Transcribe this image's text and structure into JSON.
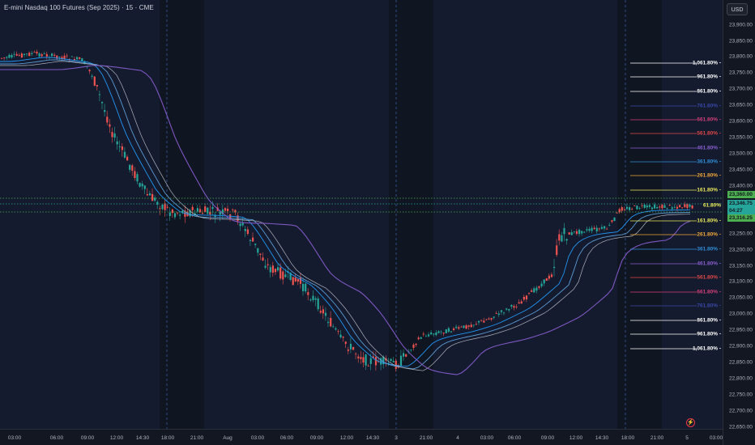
{
  "header": {
    "title": "E-mini Nasdaq 100 Futures (Sep 2025) · 15 · CME"
  },
  "currency": "USD",
  "price_ticks": [
    "23,900.00",
    "23,850.00",
    "23,800.00",
    "23,750.00",
    "23,700.00",
    "23,650.00",
    "23,600.00",
    "23,550.00",
    "23,500.00",
    "23,450.00",
    "23,400.00",
    "23,350.00",
    "23,250.00",
    "23,200.00",
    "23,150.00",
    "23,100.00",
    "23,050.00",
    "23,000.00",
    "22,950.00",
    "22,900.00",
    "22,850.00",
    "22,800.00",
    "22,750.00",
    "22,700.00",
    "22,650.00"
  ],
  "time_ticks": [
    "03:00",
    "06:00",
    "09:00",
    "12:00",
    "14:30",
    "18:00",
    "21:00",
    "Aug",
    "03:00",
    "06:00",
    "09:00",
    "12:00",
    "14:30",
    "3",
    "21:00",
    "4",
    "03:00",
    "06:00",
    "09:00",
    "12:00",
    "14:30",
    "18:00",
    "21:00",
    "5",
    "03:00"
  ],
  "upper_fibs": [
    {
      "label": "1,061.80%",
      "color": "#ffffff"
    },
    {
      "label": "961.80%",
      "color": "#ffffff"
    },
    {
      "label": "861.80%",
      "color": "#ffffff"
    },
    {
      "label": "761.80%",
      "color": "#3a47a8"
    },
    {
      "label": "661.80%",
      "color": "#d43f7a"
    },
    {
      "label": "561.80%",
      "color": "#e04848"
    },
    {
      "label": "461.80%",
      "color": "#8a5fd0"
    },
    {
      "label": "361.80%",
      "color": "#2f8ed8"
    },
    {
      "label": "261.80%",
      "color": "#f2a83a"
    },
    {
      "label": "161.80%",
      "color": "#e8e85a"
    }
  ],
  "lower_fibs": [
    {
      "label": "161.80%",
      "color": "#e8e85a"
    },
    {
      "label": "261.80%",
      "color": "#f2a83a"
    },
    {
      "label": "361.80%",
      "color": "#2f8ed8"
    },
    {
      "label": "461.80%",
      "color": "#8a5fd0"
    },
    {
      "label": "561.80%",
      "color": "#e04848"
    },
    {
      "label": "661.80%",
      "color": "#d43f7a"
    },
    {
      "label": "761.80%",
      "color": "#3a47a8"
    },
    {
      "label": "861.80%",
      "color": "#ffffff"
    },
    {
      "label": "961.80%",
      "color": "#ffffff"
    },
    {
      "label": "1,061.80%",
      "color": "#ffffff"
    }
  ],
  "fib_center": {
    "label": "61.80%",
    "color": "#e8e85a"
  },
  "price_labels": {
    "high": {
      "value": "23,360.00",
      "color": "#4caf50"
    },
    "last": {
      "value": "23,346.75",
      "countdown": "04:27",
      "color": "#26a69a"
    },
    "low": {
      "value": "23,316.25",
      "color": "#4caf50"
    }
  },
  "colors": {
    "up": "#26a69a",
    "down": "#ef5350",
    "ma_fast": "#2196f3",
    "ma_mid": "#5b9bd5",
    "ma_slow": "#b0b4bd",
    "ma_long": "#7e57c2"
  },
  "alert_icon": "lightning-icon"
}
